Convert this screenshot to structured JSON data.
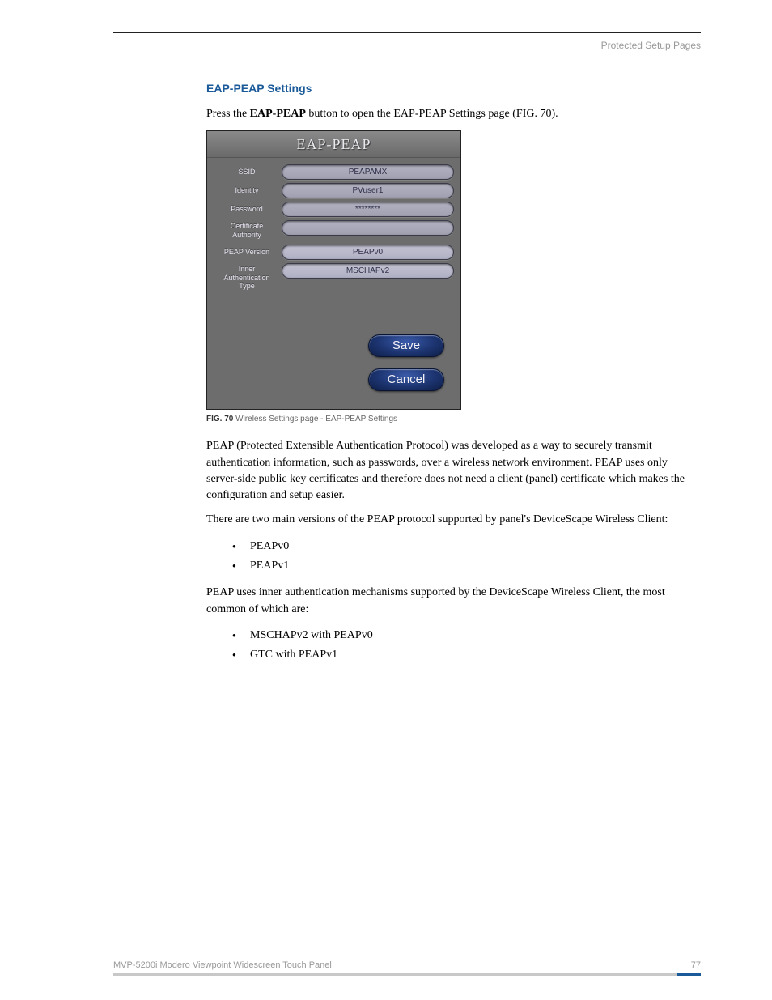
{
  "header": {
    "right_text": "Protected Setup Pages"
  },
  "section": {
    "heading": "EAP-PEAP Settings",
    "intro_pre": "Press the ",
    "intro_bold": "EAP-PEAP",
    "intro_post": " button to open the EAP-PEAP Settings page (FIG. 70)."
  },
  "panel": {
    "title": "EAP-PEAP",
    "fields": {
      "ssid": {
        "label": "SSID",
        "value": "PEAPAMX"
      },
      "identity": {
        "label": "Identity",
        "value": "PVuser1"
      },
      "password": {
        "label": "Password",
        "value": "********"
      },
      "cert": {
        "label": "Certificate Authority",
        "value": ""
      },
      "peapver": {
        "label": "PEAP Version",
        "value": "PEAPv0"
      },
      "innerauth": {
        "label": "Inner Authentication Type",
        "value": "MSCHAPv2"
      }
    },
    "buttons": {
      "save": "Save",
      "cancel": "Cancel"
    }
  },
  "fig_caption": {
    "bold": "FIG. 70",
    "rest": "  Wireless Settings page - EAP-PEAP Settings"
  },
  "para1": "PEAP (Protected Extensible Authentication Protocol) was developed as a way to securely transmit authentication information, such as passwords, over a wireless network environment. PEAP uses only server-side public key certificates and therefore does not need a client (panel) certificate which makes the configuration and setup easier.",
  "para2": "There are two main versions of the PEAP protocol supported by panel's DeviceScape Wireless Client:",
  "list1": [
    "PEAPv0",
    "PEAPv1"
  ],
  "para3": "PEAP uses inner authentication mechanisms supported by the DeviceScape Wireless Client, the most common of which are:",
  "list2": [
    "MSCHAPv2 with PEAPv0",
    "GTC with PEAPv1"
  ],
  "footer": {
    "left": "MVP-5200i Modero Viewpoint Widescreen Touch Panel",
    "page": "77"
  }
}
